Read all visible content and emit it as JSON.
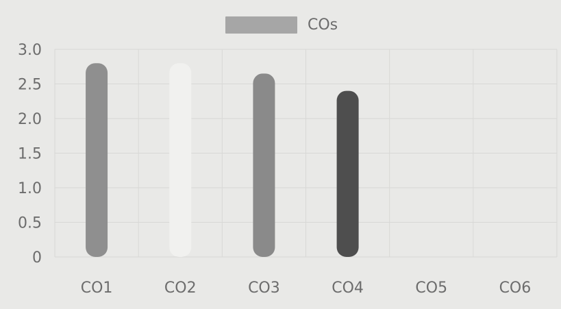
{
  "chart_data": {
    "type": "bar",
    "categories": [
      "CO1",
      "CO2",
      "CO3",
      "CO4",
      "CO5",
      "CO6"
    ],
    "series": [
      {
        "name": "COs",
        "values": [
          2.8,
          2.8,
          2.65,
          2.4,
          0,
          0
        ],
        "colors": [
          "#8f8f8f",
          "#f1f1ef",
          "#8a8a8a",
          "#4e4e4e",
          "#b0b0b0",
          "#b0b0b0"
        ]
      }
    ],
    "y_ticks": [
      "3.0",
      "2.5",
      "2.0",
      "1.5",
      "1.0",
      "0.5",
      "0"
    ],
    "ylim": [
      0,
      3.0
    ],
    "legend": {
      "label": "COs",
      "swatch_color": "#a6a6a6",
      "position": "top-center"
    },
    "grid": true,
    "title": "",
    "xlabel": "",
    "ylabel": ""
  }
}
